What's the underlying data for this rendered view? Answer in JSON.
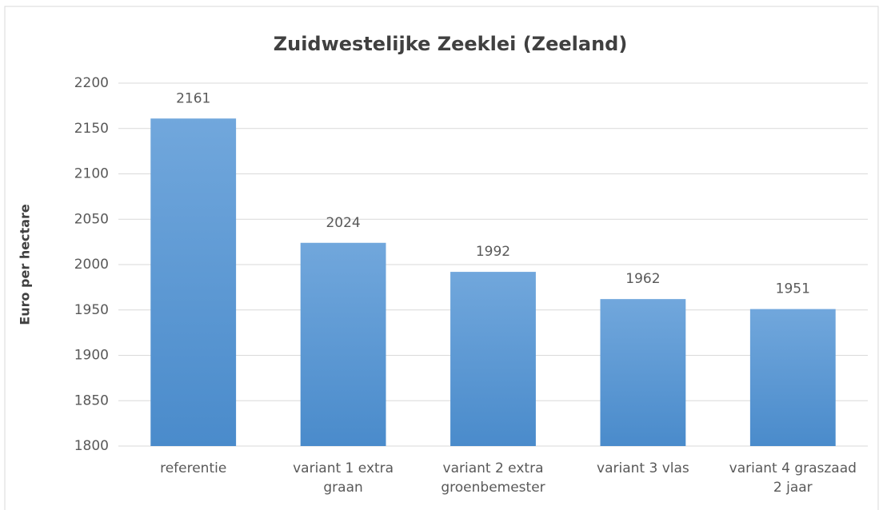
{
  "chart_data": {
    "type": "bar",
    "title": "Zuidwestelijke Zeeklei (Zeeland)",
    "y_label": "Euro per hectare",
    "categories": [
      "referentie",
      "variant 1 extra graan",
      "variant 2 extra groenbemester",
      "variant 3 vlas",
      "variant 4 graszaad 2 jaar"
    ],
    "values": [
      2161,
      2024,
      1992,
      1962,
      1951
    ],
    "color": "#5b9bd5",
    "ylim": [
      1800,
      2200
    ],
    "yticks": [
      1800,
      1850,
      1900,
      1950,
      2000,
      2050,
      2100,
      2150,
      2200
    ],
    "grid": true
  }
}
